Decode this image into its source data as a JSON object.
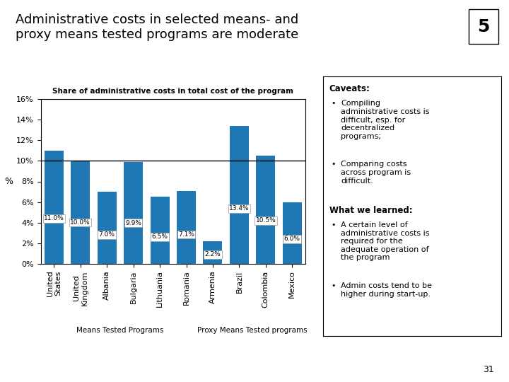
{
  "chart_data": {
    "type": "bar",
    "title": "Administrative costs in selected means- and\nproxy means tested programs are moderate",
    "subtitle": "Share of administrative costs in total cost of the program",
    "categories": [
      "United\nStates",
      "United\nKingdom",
      "Albania",
      "Bulgaria",
      "Lithuania",
      "Romania",
      "Armenia",
      "Brazil",
      "Colombia",
      "Mexico"
    ],
    "values": [
      11.0,
      10.0,
      7.0,
      9.9,
      6.5,
      7.1,
      2.2,
      13.4,
      10.5,
      6.0
    ],
    "value_labels": [
      "11.0%",
      "10.0%",
      "7.0%",
      "9.9%",
      "6.5%",
      "7.1%",
      "2.2%",
      "13.4%",
      "10.5%",
      "6.0%"
    ],
    "data_labels": true,
    "ylabel": "%",
    "ylim": [
      0,
      16
    ],
    "yticks": [
      {
        "value": 0,
        "label": "0%"
      },
      {
        "value": 2,
        "label": "2%"
      },
      {
        "value": 4,
        "label": "4%"
      },
      {
        "value": 6,
        "label": "6%"
      },
      {
        "value": 8,
        "label": "8%"
      },
      {
        "value": 10,
        "label": "10%"
      },
      {
        "value": 12,
        "label": "12%"
      },
      {
        "value": 14,
        "label": "14%"
      },
      {
        "value": 16,
        "label": "16%"
      }
    ],
    "reference_line": 10,
    "groups": [
      {
        "name": "Means Tested Programs",
        "categories": [
          "United\nStates",
          "United\nKingdom",
          "Albania",
          "Bulgaria",
          "Lithuania",
          "Romania"
        ]
      },
      {
        "name": "Proxy Means Tested programs",
        "categories": [
          "Armenia",
          "Brazil",
          "Colombia",
          "Mexico"
        ]
      }
    ],
    "annotations": {
      "badge": "5",
      "page": "31",
      "bullet": "•",
      "notes": [
        {
          "heading": "Caveats:",
          "items": [
            "Compiling\nadministrative costs is\ndifficult, esp. for\ndecentralized\nprograms;",
            "Comparing costs\nacross program is\ndifficult."
          ]
        },
        {
          "heading": "What we learned:",
          "items": [
            "A certain level of\nadministrative costs is\nrequired for the\nadequate operation of\nthe program",
            "Admin costs tend to be\nhigher during start-up."
          ]
        }
      ]
    }
  }
}
